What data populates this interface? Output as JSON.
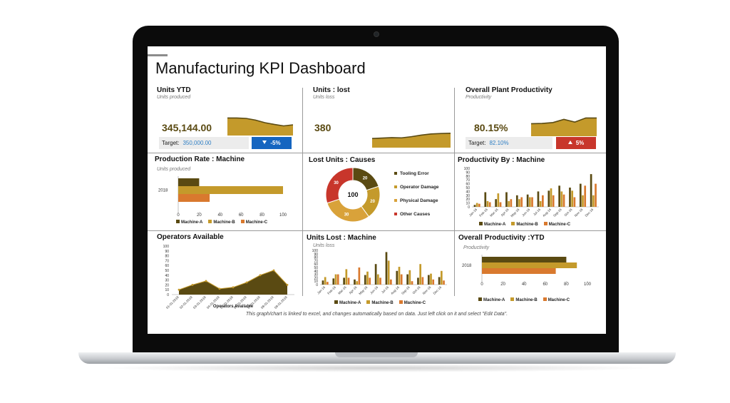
{
  "dashboard": {
    "title": "Manufacturing KPI Dashboard",
    "footnote": "This graph/chart is linked to excel, and changes automatically based on data. Just left click on it and select \"Edit Data\"."
  },
  "colors": {
    "machine_a": "#5a4a12",
    "machine_b": "#c49a2b",
    "machine_c": "#d9792e",
    "badge_blue": "#1565c0",
    "badge_red": "#c8362b",
    "donut_dark": "#5a4a12",
    "donut_gold": "#c49a2b",
    "donut_light": "#d9a23a",
    "donut_red": "#c8362b"
  },
  "kpis": {
    "units_ytd": {
      "title": "Units YTD",
      "subtitle": "Units produced",
      "value": "345,144.00",
      "target_label": "Target:",
      "target_value": "350,000.00",
      "delta": "-5%",
      "delta_icon": "arrow-down-icon"
    },
    "units_lost": {
      "title": "Units : lost",
      "subtitle": "Units loss",
      "value": "380"
    },
    "overall_productivity": {
      "title": "Overall Plant Productivity",
      "subtitle": "Productivity",
      "value": "80.15%",
      "target_label": "Target:",
      "target_value": "82.10%",
      "delta": "5%",
      "delta_icon": "arrow-up-icon"
    }
  },
  "panels": {
    "production_rate": {
      "title": "Production Rate : Machine",
      "subtitle": "Units produced"
    },
    "lost_units_causes": {
      "title": "Lost Units : Causes"
    },
    "productivity_by_machine": {
      "title": "Productivity By : Machine"
    },
    "operators_available": {
      "title": "Operators Available"
    },
    "units_lost_machine": {
      "title": "Units Lost : Machine",
      "subtitle": "Units loss"
    },
    "overall_productivity_ytd": {
      "title": "Overall Productivity :YTD",
      "subtitle": "Productivity"
    }
  },
  "chart_data": [
    {
      "id": "units_ytd_spark",
      "type": "area",
      "values": [
        82,
        82,
        80,
        72,
        60,
        52,
        45,
        50
      ]
    },
    {
      "id": "units_lost_spark",
      "type": "area",
      "values": [
        40,
        42,
        44,
        43,
        48,
        55,
        60,
        62,
        63
      ]
    },
    {
      "id": "productivity_spark",
      "type": "area",
      "values": [
        55,
        56,
        60,
        74,
        62,
        80,
        80
      ]
    },
    {
      "id": "production_rate",
      "type": "bar",
      "orientation": "horizontal",
      "categories": [
        "2018"
      ],
      "series": [
        {
          "name": "Machine-A",
          "values": [
            20
          ]
        },
        {
          "name": "Machine-B",
          "values": [
            100
          ]
        },
        {
          "name": "Machine-C",
          "values": [
            30
          ]
        }
      ],
      "xticks": [
        "0",
        "20",
        "40",
        "60",
        "80",
        "100"
      ],
      "xlim": [
        0,
        100
      ]
    },
    {
      "id": "lost_units_causes",
      "type": "pie",
      "center_label": "100",
      "slices": [
        {
          "name": "Tooling Error",
          "value": 20,
          "label": "20"
        },
        {
          "name": "Operator Damage",
          "value": 20,
          "label": "20"
        },
        {
          "name": "Physical Damage",
          "value": 30,
          "label": "30"
        },
        {
          "name": "Other Causes",
          "value": 30,
          "label": "30"
        }
      ]
    },
    {
      "id": "productivity_by_machine",
      "type": "bar",
      "categories": [
        "Jan-16",
        "Feb-16",
        "Mar-16",
        "Apr-16",
        "May-16",
        "Jun-16",
        "Jul-16",
        "Aug-16",
        "Sep-16",
        "Oct-16",
        "Nov-16",
        "Dec-16"
      ],
      "series": [
        {
          "name": "Machine-A",
          "values": [
            5,
            38,
            20,
            38,
            30,
            32,
            40,
            42,
            55,
            50,
            60,
            85
          ]
        },
        {
          "name": "Machine-B",
          "values": [
            10,
            15,
            35,
            15,
            20,
            25,
            15,
            48,
            40,
            42,
            30,
            30
          ]
        },
        {
          "name": "Machine-C",
          "values": [
            8,
            12,
            12,
            20,
            25,
            25,
            30,
            30,
            32,
            25,
            55,
            60
          ]
        }
      ],
      "yticks": [
        "0",
        "10",
        "20",
        "30",
        "40",
        "50",
        "60",
        "70",
        "80",
        "90",
        "100"
      ],
      "ylim": [
        0,
        100
      ]
    },
    {
      "id": "operators_available",
      "type": "area",
      "categories": [
        "01-01-2018",
        "02-01-2018",
        "03-01-2018",
        "04-01-2018",
        "05-01-2018",
        "06-01-2018",
        "07-01-2018",
        "08-01-2018",
        "09-01-2018"
      ],
      "series": [
        {
          "name": "Operators Available",
          "values": [
            10,
            20,
            28,
            12,
            15,
            25,
            40,
            50,
            20
          ]
        }
      ],
      "yticks": [
        "0",
        "10",
        "20",
        "30",
        "40",
        "50",
        "60",
        "70",
        "80",
        "90",
        "100"
      ],
      "ylim": [
        0,
        100
      ]
    },
    {
      "id": "units_lost_machine",
      "type": "bar",
      "categories": [
        "Jan-16",
        "Feb-16",
        "Mar-16",
        "Apr-16",
        "May-16",
        "Jun-16",
        "Jul-16",
        "Aug-16",
        "Sep-16",
        "Oct-16",
        "Nov-16",
        "Dec-16"
      ],
      "series": [
        {
          "name": "Machine-A",
          "values": [
            12,
            18,
            20,
            15,
            28,
            60,
            95,
            40,
            30,
            20,
            28,
            22
          ]
        },
        {
          "name": "Machine-B",
          "values": [
            22,
            30,
            45,
            10,
            38,
            30,
            70,
            52,
            42,
            60,
            32,
            40
          ]
        },
        {
          "name": "Machine-C",
          "values": [
            8,
            30,
            20,
            50,
            20,
            20,
            15,
            30,
            10,
            22,
            15,
            12
          ]
        }
      ],
      "yticks": [
        "0",
        "10",
        "20",
        "30",
        "40",
        "50",
        "60",
        "70",
        "80",
        "90",
        "100"
      ],
      "ylim": [
        0,
        100
      ]
    },
    {
      "id": "overall_productivity_ytd",
      "type": "bar",
      "orientation": "horizontal",
      "categories": [
        "2018"
      ],
      "series": [
        {
          "name": "Machine-A",
          "values": [
            80
          ]
        },
        {
          "name": "Machine-B",
          "values": [
            90
          ]
        },
        {
          "name": "Machine-C",
          "values": [
            70
          ]
        }
      ],
      "xticks": [
        "0",
        "20",
        "40",
        "60",
        "80",
        "100"
      ],
      "xlim": [
        0,
        100
      ]
    }
  ]
}
